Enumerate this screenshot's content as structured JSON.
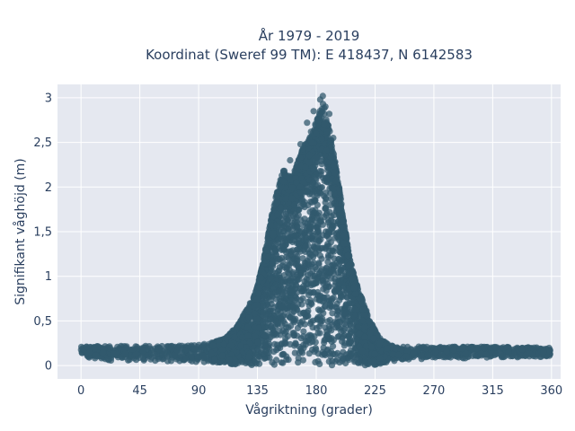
{
  "chart_data": {
    "type": "scatter",
    "title": "År 1979 - 2019",
    "subtitle": "Koordinat (Sweref 99 TM): E 418437, N 6142583",
    "xlabel": "Vågriktning (grader)",
    "ylabel": "Signifikant våghöjd (m)",
    "xlim": [
      -18,
      367
    ],
    "ylim": [
      -0.15,
      3.15
    ],
    "x_ticks": [
      0,
      45,
      90,
      135,
      180,
      225,
      270,
      315,
      360
    ],
    "x_tick_labels": [
      "0",
      "45",
      "90",
      "135",
      "180",
      "225",
      "270",
      "315",
      "360"
    ],
    "y_ticks": [
      0,
      0.5,
      1,
      1.5,
      2,
      2.5,
      3
    ],
    "y_tick_labels": [
      "0",
      "0,5",
      "1",
      "1,5",
      "2",
      "2,5",
      "3"
    ],
    "grid": true,
    "legend": "none",
    "colors": {
      "marker": "#31596e",
      "plot_bg": "#e5e8f0",
      "grid": "#ffffff",
      "text": "#2a3f5f"
    },
    "series": [
      {
        "envelope_x": [
          0,
          20,
          45,
          60,
          90,
          100,
          110,
          120,
          130,
          135,
          140,
          145,
          150,
          155,
          160,
          165,
          170,
          175,
          180,
          185,
          190,
          195,
          200,
          205,
          210,
          215,
          220,
          225,
          230,
          240,
          270,
          315,
          360
        ],
        "envelope_ymax": [
          0.21,
          0.22,
          0.22,
          0.22,
          0.23,
          0.26,
          0.3,
          0.45,
          0.72,
          0.9,
          1.2,
          1.62,
          1.95,
          2.2,
          2.1,
          2.25,
          2.45,
          2.55,
          2.75,
          2.95,
          2.65,
          2.25,
          1.75,
          1.25,
          0.95,
          0.75,
          0.55,
          0.4,
          0.28,
          0.22,
          0.21,
          0.21,
          0.2
        ],
        "envelope_ymin": [
          0.1,
          0.05,
          0.06,
          0.05,
          0.04,
          0.03,
          0.02,
          0.01,
          0.0,
          0.0,
          0.0,
          0.0,
          0.0,
          0.0,
          0.0,
          0.0,
          0.0,
          0.0,
          0.0,
          0.0,
          0.0,
          0.0,
          0.0,
          0.0,
          0.0,
          0.0,
          0.0,
          0.0,
          0.02,
          0.05,
          0.08,
          0.08,
          0.1
        ],
        "outliers": [
          {
            "x": 185,
            "y": 3.02
          },
          {
            "x": 183,
            "y": 2.98
          },
          {
            "x": 178,
            "y": 2.85
          },
          {
            "x": 173,
            "y": 2.72
          },
          {
            "x": 187,
            "y": 2.9
          },
          {
            "x": 190,
            "y": 2.82
          },
          {
            "x": 168,
            "y": 2.48
          },
          {
            "x": 160,
            "y": 2.3
          },
          {
            "x": 176,
            "y": 2.62
          },
          {
            "x": 193,
            "y": 2.55
          },
          {
            "x": 186,
            "y": 2.7
          },
          {
            "x": 180,
            "y": 2.6
          }
        ]
      }
    ]
  }
}
